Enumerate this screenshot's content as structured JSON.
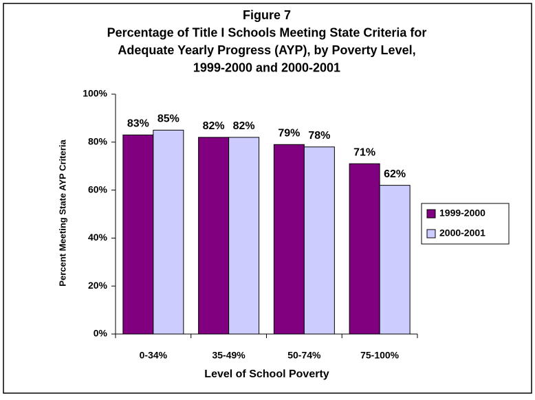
{
  "chart_data": {
    "type": "bar",
    "title": [
      "Figure 7",
      "Percentage of Title I Schools Meeting State Criteria for",
      "Adequate Yearly Progress (AYP), by Poverty Level,",
      "1999-2000 and 2000-2001"
    ],
    "x_label": "Level of School Poverty",
    "y_label": "Percent Meeting State AYP Criteria",
    "categories": [
      "0-34%",
      "35-49%",
      "50-74%",
      "75-100%"
    ],
    "series": [
      {
        "name": "1999-2000",
        "color": "#800080",
        "values": [
          83,
          82,
          79,
          71
        ],
        "value_labels": [
          "83%",
          "82%",
          "79%",
          "71%"
        ]
      },
      {
        "name": "2000-2001",
        "color": "#ccccff",
        "values": [
          85,
          82,
          78,
          62
        ],
        "value_labels": [
          "85%",
          "82%",
          "78%",
          "62%"
        ]
      }
    ],
    "ylim": [
      0,
      100
    ],
    "yticks": [
      {
        "value": 0,
        "label": "0%"
      },
      {
        "value": 20,
        "label": "20%"
      },
      {
        "value": 40,
        "label": "40%"
      },
      {
        "value": 60,
        "label": "60%"
      },
      {
        "value": 80,
        "label": "80%"
      },
      {
        "value": 100,
        "label": "100%"
      }
    ],
    "grid": false,
    "legend": "right"
  }
}
